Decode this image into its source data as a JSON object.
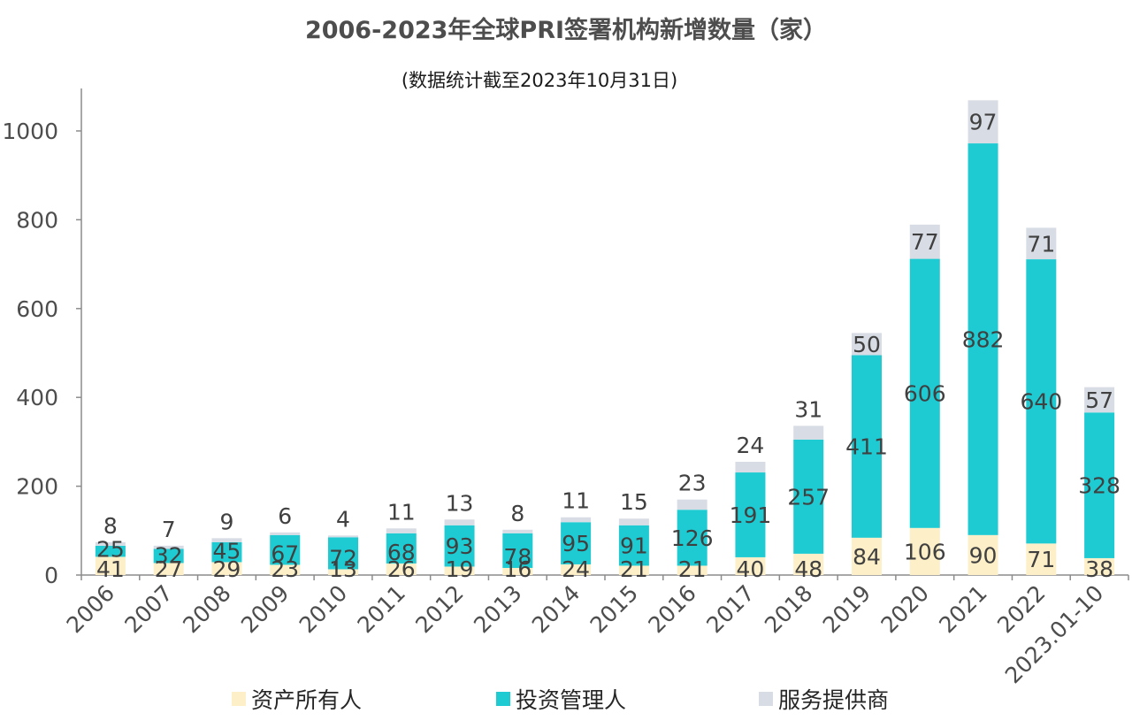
{
  "chart_data": {
    "type": "bar",
    "stacked": true,
    "title": "2006-2023年全球PRI签署机构新增数量（家）",
    "subtitle": "(数据统计截至2023年10月31日)",
    "xlabel": "",
    "ylabel": "",
    "ylim": [
      0,
      1100
    ],
    "yticks": [
      0,
      200,
      400,
      600,
      800,
      1000
    ],
    "categories": [
      "2006",
      "2007",
      "2008",
      "2009",
      "2010",
      "2011",
      "2012",
      "2013",
      "2014",
      "2015",
      "2016",
      "2017",
      "2018",
      "2019",
      "2020",
      "2021",
      "2022",
      "2023.01-10"
    ],
    "series": [
      {
        "name": "资产所有人",
        "color": "#fdefc7",
        "values": [
          41,
          27,
          29,
          23,
          13,
          26,
          19,
          16,
          24,
          21,
          21,
          40,
          48,
          84,
          106,
          90,
          71,
          38
        ]
      },
      {
        "name": "投资管理人",
        "color": "#1ecbd3",
        "values": [
          25,
          32,
          45,
          67,
          72,
          68,
          93,
          78,
          95,
          91,
          126,
          191,
          257,
          411,
          606,
          882,
          640,
          328
        ]
      },
      {
        "name": "服务提供商",
        "color": "#d8dce4",
        "values": [
          8,
          7,
          9,
          6,
          4,
          11,
          13,
          8,
          11,
          15,
          23,
          24,
          31,
          50,
          77,
          97,
          71,
          57
        ]
      }
    ],
    "legend_position": "bottom"
  }
}
